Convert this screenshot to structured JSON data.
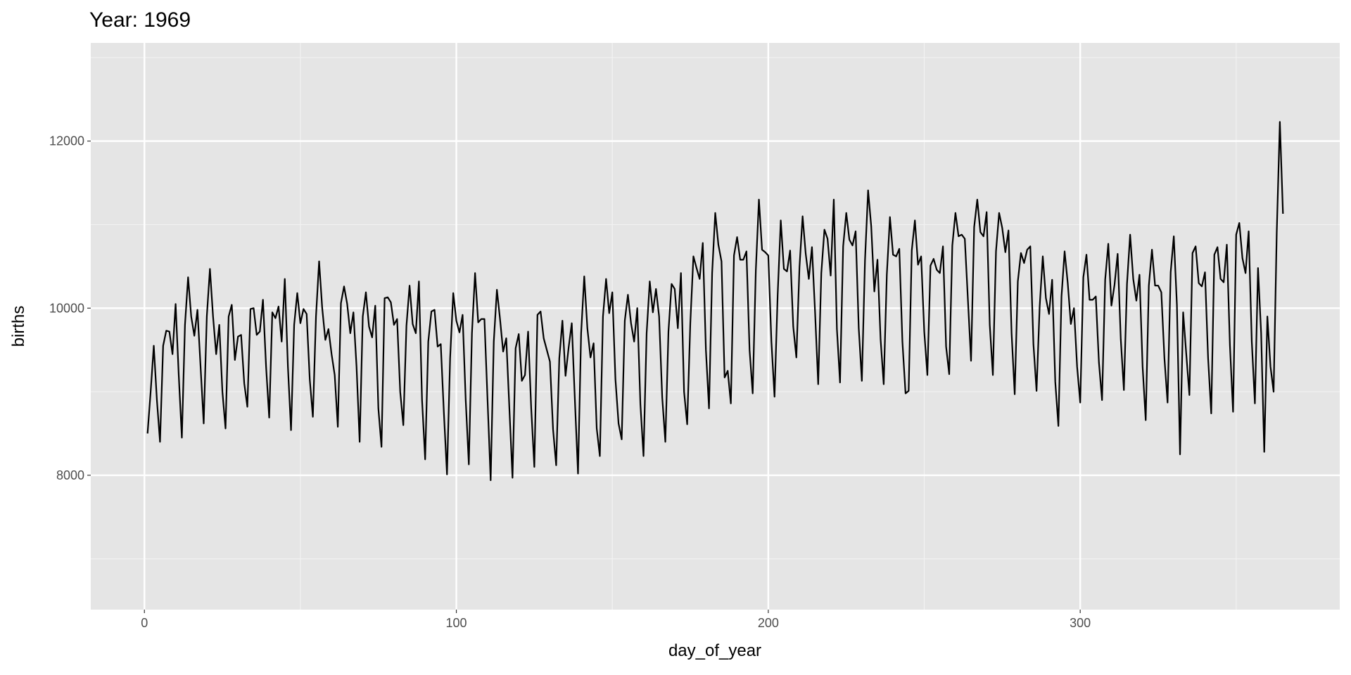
{
  "chart_data": {
    "type": "line",
    "title": "Year: 1969",
    "x_label": "day_of_year",
    "y_label": "births",
    "x": [
      1,
      2,
      3,
      4,
      5,
      6,
      7,
      8,
      9,
      10,
      11,
      12,
      13,
      14,
      15,
      16,
      17,
      18,
      19,
      20,
      21,
      22,
      23,
      24,
      25,
      26,
      27,
      28,
      29,
      30,
      31,
      32,
      33,
      34,
      35,
      36,
      37,
      38,
      39,
      40,
      41,
      42,
      43,
      44,
      45,
      46,
      47,
      48,
      49,
      50,
      51,
      52,
      53,
      54,
      55,
      56,
      57,
      58,
      59,
      60,
      61,
      62,
      63,
      64,
      65,
      66,
      67,
      68,
      69,
      70,
      71,
      72,
      73,
      74,
      75,
      76,
      77,
      78,
      79,
      80,
      81,
      82,
      83,
      84,
      85,
      86,
      87,
      88,
      89,
      90,
      91,
      92,
      93,
      94,
      95,
      96,
      97,
      98,
      99,
      100,
      101,
      102,
      103,
      104,
      105,
      106,
      107,
      108,
      109,
      110,
      111,
      112,
      113,
      114,
      115,
      116,
      117,
      118,
      119,
      120,
      121,
      122,
      123,
      124,
      125,
      126,
      127,
      128,
      129,
      130,
      131,
      132,
      133,
      134,
      135,
      136,
      137,
      138,
      139,
      140,
      141,
      142,
      143,
      144,
      145,
      146,
      147,
      148,
      149,
      150,
      151,
      152,
      153,
      154,
      155,
      156,
      157,
      158,
      159,
      160,
      161,
      162,
      163,
      164,
      165,
      166,
      167,
      168,
      169,
      170,
      171,
      172,
      173,
      174,
      175,
      176,
      177,
      178,
      179,
      180,
      181,
      182,
      183,
      184,
      185,
      186,
      187,
      188,
      189,
      190,
      191,
      192,
      193,
      194,
      195,
      196,
      197,
      198,
      199,
      200,
      201,
      202,
      203,
      204,
      205,
      206,
      207,
      208,
      209,
      210,
      211,
      212,
      213,
      214,
      215,
      216,
      217,
      218,
      219,
      220,
      221,
      222,
      223,
      224,
      225,
      226,
      227,
      228,
      229,
      230,
      231,
      232,
      233,
      234,
      235,
      236,
      237,
      238,
      239,
      240,
      241,
      242,
      243,
      244,
      245,
      246,
      247,
      248,
      249,
      250,
      251,
      252,
      253,
      254,
      255,
      256,
      257,
      258,
      259,
      260,
      261,
      262,
      263,
      264,
      265,
      266,
      267,
      268,
      269,
      270,
      271,
      272,
      273,
      274,
      275,
      276,
      277,
      278,
      279,
      280,
      281,
      282,
      283,
      284,
      285,
      286,
      287,
      288,
      289,
      290,
      291,
      292,
      293,
      294,
      295,
      296,
      297,
      298,
      299,
      300,
      301,
      302,
      303,
      304,
      305,
      306,
      307,
      308,
      309,
      310,
      311,
      312,
      313,
      314,
      315,
      316,
      317,
      318,
      319,
      320,
      321,
      322,
      323,
      324,
      325,
      326,
      327,
      328,
      329,
      330,
      331,
      332,
      333,
      334,
      335,
      336,
      337,
      338,
      339,
      340,
      341,
      342,
      343,
      344,
      345,
      346,
      347,
      348,
      349,
      350,
      351,
      352,
      353,
      354,
      355,
      356,
      357,
      358,
      359,
      360,
      361,
      362,
      363,
      364,
      365
    ],
    "series": [
      {
        "name": "births",
        "color": "#000000",
        "values": [
          8500,
          9000,
          9550,
          8900,
          8400,
          9550,
          9730,
          9720,
          9450,
          10050,
          9200,
          8450,
          9800,
          10370,
          9900,
          9670,
          9980,
          9300,
          8620,
          9900,
          10470,
          9900,
          9450,
          9800,
          9000,
          8560,
          9900,
          10040,
          9380,
          9660,
          9680,
          9100,
          8820,
          9990,
          10000,
          9680,
          9720,
          10100,
          9300,
          8690,
          9950,
          9880,
          10020,
          9600,
          10350,
          9300,
          8540,
          9800,
          10180,
          9820,
          9990,
          9930,
          9150,
          8700,
          9900,
          10560,
          10000,
          9620,
          9750,
          9450,
          9200,
          8580,
          10060,
          10260,
          10050,
          9700,
          9950,
          9300,
          8400,
          9900,
          10190,
          9780,
          9650,
          10030,
          8800,
          8340,
          10120,
          10130,
          10070,
          9800,
          9870,
          9000,
          8600,
          9790,
          10270,
          9810,
          9700,
          10320,
          8900,
          8190,
          9600,
          9960,
          9980,
          9540,
          9570,
          8750,
          8010,
          9400,
          10180,
          9850,
          9710,
          9920,
          8900,
          8130,
          9700,
          10420,
          9830,
          9870,
          9870,
          8900,
          7940,
          9600,
          10220,
          9870,
          9480,
          9640,
          8800,
          7970,
          9520,
          9690,
          9130,
          9200,
          9720,
          8800,
          8100,
          9920,
          9960,
          9640,
          9500,
          9360,
          8550,
          8120,
          9400,
          9850,
          9190,
          9530,
          9820,
          8900,
          8020,
          9700,
          10380,
          9760,
          9410,
          9580,
          8560,
          8230,
          9900,
          10350,
          9940,
          10190,
          9150,
          8620,
          8430,
          9850,
          10160,
          9820,
          9600,
          10000,
          8850,
          8230,
          9700,
          10320,
          9950,
          10230,
          9900,
          8930,
          8400,
          9720,
          10290,
          10230,
          9760,
          10420,
          9000,
          8610,
          9820,
          10620,
          10480,
          10350,
          10780,
          9500,
          8800,
          10420,
          11140,
          10760,
          10560,
          9170,
          9250,
          8860,
          10630,
          10850,
          10580,
          10580,
          10680,
          9500,
          8980,
          10450,
          11300,
          10700,
          10670,
          10630,
          9600,
          8940,
          10150,
          11050,
          10470,
          10440,
          10690,
          9780,
          9410,
          10490,
          11100,
          10650,
          10350,
          10730,
          9950,
          9090,
          10420,
          10940,
          10830,
          10390,
          11300,
          9750,
          9110,
          10740,
          11140,
          10820,
          10750,
          10920,
          9760,
          9130,
          10570,
          11410,
          10980,
          10200,
          10580,
          9630,
          9090,
          10400,
          11090,
          10640,
          10620,
          10710,
          9600,
          8980,
          9010,
          10690,
          11050,
          10520,
          10620,
          9720,
          9200,
          10510,
          10590,
          10460,
          10420,
          10740,
          9540,
          9210,
          10750,
          11140,
          10860,
          10880,
          10830,
          10100,
          9370,
          10970,
          11300,
          10910,
          10860,
          11150,
          9800,
          9200,
          10680,
          11140,
          10960,
          10670,
          10930,
          9700,
          8970,
          10320,
          10660,
          10540,
          10700,
          10740,
          9570,
          9010,
          10020,
          10620,
          10120,
          9930,
          10340,
          9120,
          8590,
          10140,
          10680,
          10300,
          9810,
          10000,
          9300,
          8870,
          10370,
          10640,
          10100,
          10100,
          10140,
          9350,
          8900,
          10340,
          10770,
          10030,
          10280,
          10650,
          9630,
          9020,
          10290,
          10880,
          10350,
          10090,
          10400,
          9300,
          8660,
          10270,
          10700,
          10270,
          10270,
          10190,
          9400,
          8870,
          10430,
          10860,
          10040,
          8250,
          9950,
          9450,
          8960,
          10660,
          10740,
          10300,
          10260,
          10430,
          9400,
          8740,
          10640,
          10730,
          10350,
          10310,
          10760,
          9550,
          8760,
          10880,
          11020,
          10600,
          10420,
          10920,
          9600,
          8860,
          10480,
          9700,
          8280,
          9900,
          9300,
          9000,
          10900,
          12230,
          11130
        ]
      }
    ],
    "xlim": [
      -17.2,
      383.2
    ],
    "xticks": [
      0,
      100,
      200,
      300
    ],
    "x_minor_grid": [
      50,
      150,
      250,
      350
    ],
    "ylim": [
      6392,
      13175
    ],
    "yticks": [
      8000,
      10000,
      12000
    ],
    "y_minor_grid": [
      7000,
      9000,
      11000,
      13000
    ],
    "grid": true,
    "panel_color": "#e5e5e5"
  }
}
